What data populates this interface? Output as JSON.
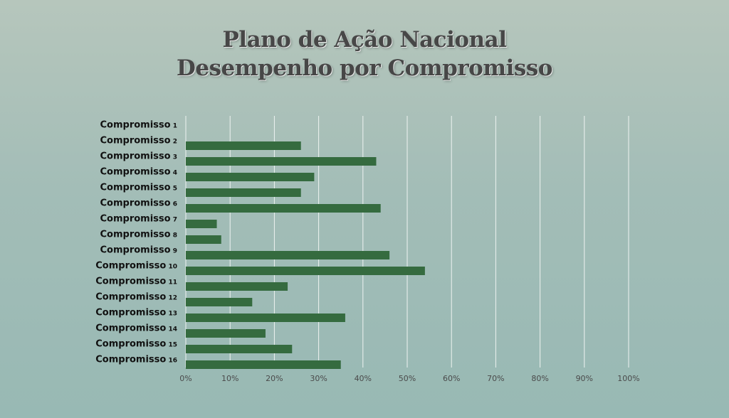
{
  "title": {
    "line1": "Plano de Ação Nacional",
    "line2": "Desempenho por Compromisso"
  },
  "colors": {
    "bar": "#356b3f",
    "grid": "#eef3f1"
  },
  "chart_data": {
    "type": "bar",
    "orientation": "horizontal",
    "title": "Plano de Ação Nacional Desempenho por Compromisso",
    "xlabel": "",
    "ylabel": "",
    "xlim": [
      0,
      1
    ],
    "x_tick_labels": [
      "0%",
      "10%",
      "20%",
      "30%",
      "40%",
      "50%",
      "60%",
      "70%",
      "80%",
      "90%",
      "100%"
    ],
    "grid": "vertical",
    "legend": "none",
    "categories": [
      {
        "name": "Compromisso",
        "num": "1"
      },
      {
        "name": "Compromisso",
        "num": "2"
      },
      {
        "name": "Compromisso",
        "num": "3"
      },
      {
        "name": "Compromisso",
        "num": "4"
      },
      {
        "name": "Compromisso",
        "num": "5"
      },
      {
        "name": "Compromisso",
        "num": "6"
      },
      {
        "name": "Compromisso",
        "num": "7"
      },
      {
        "name": "Compromisso",
        "num": "8"
      },
      {
        "name": "Compromisso",
        "num": "9"
      },
      {
        "name": "Compromisso",
        "num": "10"
      },
      {
        "name": "Compromisso",
        "num": "11"
      },
      {
        "name": "Compromisso",
        "num": "12"
      },
      {
        "name": "Compromisso",
        "num": "13"
      },
      {
        "name": "Compromisso",
        "num": "14"
      },
      {
        "name": "Compromisso",
        "num": "15"
      },
      {
        "name": "Compromisso",
        "num": "16"
      }
    ],
    "values": [
      0,
      0.26,
      0.43,
      0.29,
      0.26,
      0.44,
      0.07,
      0.08,
      0.46,
      0.54,
      0.23,
      0.15,
      0.36,
      0.18,
      0.24,
      0.35
    ]
  }
}
